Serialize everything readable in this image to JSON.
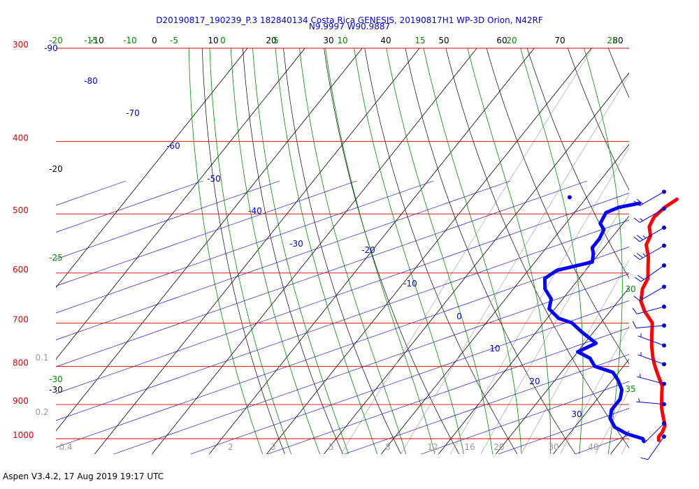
{
  "header": {
    "line1": "D20190817_190239_P.3 182840134 Costa Rica GENESIS, 20190817H1 WP-3D Orion, N42RF",
    "line2": "N9.9997 W90.9887"
  },
  "footer": {
    "text": "Aspen V3.4.2, 17 Aug 2019  19:17 UTC"
  },
  "colors": {
    "isobar": "#dd0000",
    "isotherm": "#000000",
    "dry_adiabat": "#000000",
    "moist_adiabat": "#008800",
    "mixing_ratio": "#999999",
    "height": "#0000cc",
    "temperature": "#ff0000",
    "dewpoint": "#0000ff",
    "wind": "#0000cc",
    "background": "#ffffff"
  },
  "chart_data": {
    "type": "skew-T log-P sounding",
    "pressure_levels_hPa": [
      300,
      400,
      500,
      600,
      700,
      800,
      900,
      1000
    ],
    "temperature_axis_labels": [
      {
        "label": "-10",
        "color": "black"
      },
      {
        "label": "0",
        "color": "black"
      },
      {
        "label": "10",
        "color": "black"
      },
      {
        "label": "20",
        "color": "black"
      },
      {
        "label": "30",
        "color": "black"
      },
      {
        "label": "40",
        "color": "black"
      },
      {
        "label": "50",
        "color": "black"
      },
      {
        "label": "60",
        "color": "black"
      },
      {
        "label": "70",
        "color": "black"
      },
      {
        "label": "80",
        "color": "black"
      }
    ],
    "moist_adiabat_labels_top": [
      "-20",
      "-15",
      "-10",
      "-5",
      "0",
      "5",
      "10",
      "15",
      "20",
      "25"
    ],
    "moist_adiabat_labels_side": [
      "-25",
      "-30",
      "30",
      "35"
    ],
    "isotherm_labels_left": [
      "-20",
      "-30"
    ],
    "height_labels": [
      "-90",
      "-80",
      "-70",
      "-60",
      "-50",
      "-40",
      "-30",
      "-20",
      "-10",
      "0",
      "10",
      "20",
      "30"
    ],
    "mixing_ratio_labels_bottom": [
      "0.4",
      "2",
      "3",
      "5",
      "8",
      "12",
      "16",
      "20",
      "30",
      "40"
    ],
    "mixing_ratio_labels_left": [
      "0.1",
      "0.2"
    ],
    "temperature_profile": [
      {
        "p": 478,
        "t": -4
      },
      {
        "p": 490,
        "t": -5
      },
      {
        "p": 505,
        "t": -5.5
      },
      {
        "p": 520,
        "t": -5
      },
      {
        "p": 535,
        "t": -3.5
      },
      {
        "p": 550,
        "t": -3
      },
      {
        "p": 570,
        "t": -1
      },
      {
        "p": 590,
        "t": 0.5
      },
      {
        "p": 610,
        "t": 2
      },
      {
        "p": 630,
        "t": 2.5
      },
      {
        "p": 655,
        "t": 4
      },
      {
        "p": 675,
        "t": 6
      },
      {
        "p": 700,
        "t": 9
      },
      {
        "p": 725,
        "t": 10.5
      },
      {
        "p": 750,
        "t": 12
      },
      {
        "p": 780,
        "t": 14
      },
      {
        "p": 800,
        "t": 15.5
      },
      {
        "p": 825,
        "t": 17.5
      },
      {
        "p": 850,
        "t": 19.5
      },
      {
        "p": 870,
        "t": 20.5
      },
      {
        "p": 890,
        "t": 21.5
      },
      {
        "p": 910,
        "t": 22.5
      },
      {
        "p": 935,
        "t": 24
      },
      {
        "p": 960,
        "t": 25.5
      },
      {
        "p": 980,
        "t": 26
      },
      {
        "p": 995,
        "t": 26
      },
      {
        "p": 1005,
        "t": 26.5
      }
    ],
    "dewpoint_profile": [
      {
        "p": 484,
        "t": -10
      },
      {
        "p": 490,
        "t": -13
      },
      {
        "p": 498,
        "t": -14.5
      },
      {
        "p": 515,
        "t": -14
      },
      {
        "p": 525,
        "t": -12.5
      },
      {
        "p": 540,
        "t": -12
      },
      {
        "p": 555,
        "t": -12
      },
      {
        "p": 565,
        "t": -11
      },
      {
        "p": 580,
        "t": -10
      },
      {
        "p": 595,
        "t": -15
      },
      {
        "p": 610,
        "t": -16
      },
      {
        "p": 630,
        "t": -14.5
      },
      {
        "p": 650,
        "t": -12
      },
      {
        "p": 670,
        "t": -11
      },
      {
        "p": 690,
        "t": -8
      },
      {
        "p": 700,
        "t": -5
      },
      {
        "p": 720,
        "t": -2
      },
      {
        "p": 745,
        "t": 2
      },
      {
        "p": 765,
        "t": 0
      },
      {
        "p": 780,
        "t": 3
      },
      {
        "p": 800,
        "t": 5
      },
      {
        "p": 815,
        "t": 9
      },
      {
        "p": 835,
        "t": 11
      },
      {
        "p": 860,
        "t": 13
      },
      {
        "p": 885,
        "t": 14
      },
      {
        "p": 915,
        "t": 14
      },
      {
        "p": 940,
        "t": 15
      },
      {
        "p": 965,
        "t": 17
      },
      {
        "p": 985,
        "t": 20
      },
      {
        "p": 1000,
        "t": 23.5
      },
      {
        "p": 1008,
        "t": 24
      }
    ],
    "isolated_dewpoint_point": {
      "p": 475,
      "t": -23
    },
    "wind_barbs": [
      {
        "p": 470,
        "dir": 240,
        "speed": 20
      },
      {
        "p": 495,
        "dir": 240,
        "speed": 15
      },
      {
        "p": 525,
        "dir": 240,
        "speed": 25
      },
      {
        "p": 555,
        "dir": 240,
        "speed": 25
      },
      {
        "p": 590,
        "dir": 235,
        "speed": 20
      },
      {
        "p": 630,
        "dir": 240,
        "speed": 15
      },
      {
        "p": 670,
        "dir": 255,
        "speed": 10
      },
      {
        "p": 710,
        "dir": 265,
        "speed": 10
      },
      {
        "p": 755,
        "dir": 290,
        "speed": 5
      },
      {
        "p": 800,
        "dir": 290,
        "speed": 5
      },
      {
        "p": 850,
        "dir": 285,
        "speed": 5
      },
      {
        "p": 905,
        "dir": 275,
        "speed": 5
      },
      {
        "p": 960,
        "dir": 225,
        "speed": 5
      },
      {
        "p": 1000,
        "dir": 215,
        "speed": 10
      }
    ]
  }
}
